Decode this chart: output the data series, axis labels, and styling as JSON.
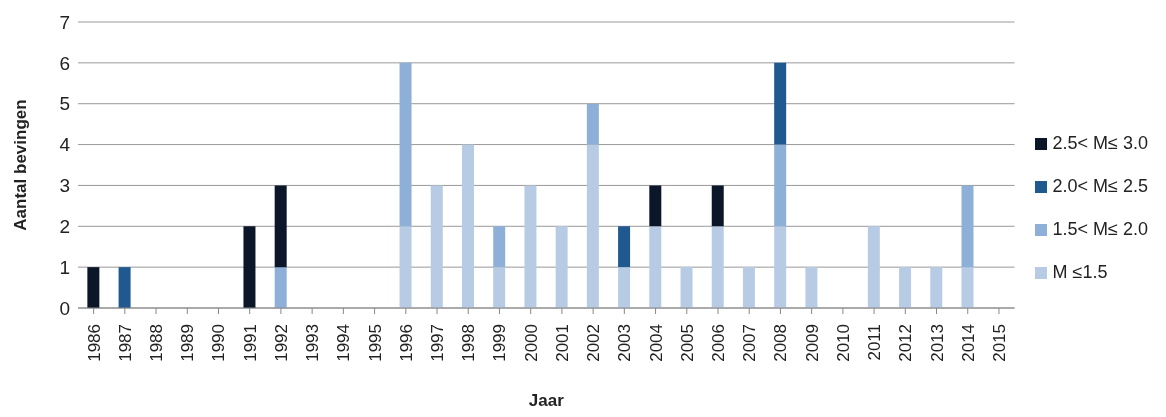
{
  "chart_data": {
    "type": "bar",
    "stacked": true,
    "xlabel": "Jaar",
    "ylabel": "Aantal bevingen",
    "categories": [
      "1986",
      "1987",
      "1988",
      "1989",
      "1990",
      "1991",
      "1992",
      "1993",
      "1994",
      "1995",
      "1996",
      "1997",
      "1998",
      "1999",
      "2000",
      "2001",
      "2002",
      "2003",
      "2004",
      "2005",
      "2006",
      "2007",
      "2008",
      "2009",
      "2010",
      "2011",
      "2012",
      "2013",
      "2014",
      "2015"
    ],
    "series": [
      {
        "name": "M ≤1.5",
        "color": "#b7cce4",
        "values": [
          0,
          0,
          0,
          0,
          0,
          0,
          0,
          0,
          0,
          0,
          2,
          3,
          4,
          1,
          3,
          2,
          4,
          1,
          2,
          1,
          2,
          1,
          2,
          1,
          0,
          2,
          1,
          1,
          1,
          0
        ]
      },
      {
        "name": "1.5< M≤ 2.0",
        "color": "#8eb0d8",
        "values": [
          0,
          0,
          0,
          0,
          0,
          0,
          1,
          0,
          0,
          0,
          4,
          0,
          0,
          1,
          0,
          0,
          1,
          0,
          0,
          0,
          0,
          0,
          2,
          0,
          0,
          0,
          0,
          0,
          2,
          0
        ]
      },
      {
        "name": "2.0< M≤ 2.5",
        "color": "#1f5990",
        "values": [
          0,
          1,
          0,
          0,
          0,
          0,
          0,
          0,
          0,
          0,
          0,
          0,
          0,
          0,
          0,
          0,
          0,
          1,
          0,
          0,
          0,
          0,
          2,
          0,
          0,
          0,
          0,
          0,
          0,
          0
        ]
      },
      {
        "name": "2.5< M≤ 3.0",
        "color": "#0b1628",
        "values": [
          1,
          0,
          0,
          0,
          0,
          2,
          2,
          0,
          0,
          0,
          0,
          0,
          0,
          0,
          0,
          0,
          0,
          0,
          1,
          0,
          1,
          0,
          0,
          0,
          0,
          0,
          0,
          0,
          0,
          0
        ]
      }
    ],
    "ylim": [
      0,
      7
    ],
    "yticks": [
      0,
      1,
      2,
      3,
      4,
      5,
      6,
      7
    ],
    "grid": "y",
    "legend": "right"
  }
}
